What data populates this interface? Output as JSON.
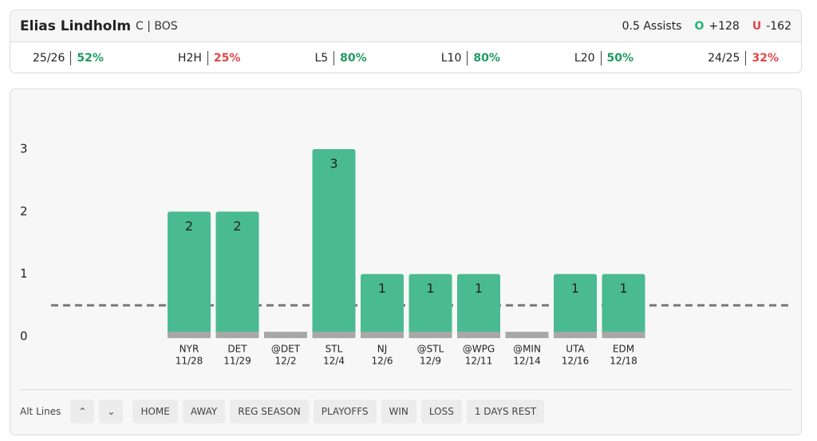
{
  "header": {
    "player": "Elias Lindholm",
    "position": "C | BOS",
    "market": "0.5 Assists",
    "over_label": "O",
    "over_odds": "+128",
    "under_label": "U",
    "under_odds": "-162"
  },
  "stats": [
    {
      "label": "25/26",
      "value": "52%",
      "color": "#1f9a63"
    },
    {
      "label": "H2H",
      "value": "25%",
      "color": "#e0464a"
    },
    {
      "label": "L5",
      "value": "80%",
      "color": "#1f9a63"
    },
    {
      "label": "L10",
      "value": "80%",
      "color": "#1f9a63"
    },
    {
      "label": "L20",
      "value": "50%",
      "color": "#1f9a63"
    },
    {
      "label": "24/25",
      "value": "32%",
      "color": "#e0464a"
    }
  ],
  "chart_data": {
    "type": "bar",
    "categories": [
      "NYR",
      "DET",
      "@DET",
      "STL",
      "NJ",
      "@STL",
      "@WPG",
      "@MIN",
      "UTA",
      "EDM"
    ],
    "dates": [
      "11/28",
      "11/29",
      "12/2",
      "12/4",
      "12/6",
      "12/9",
      "12/11",
      "12/14",
      "12/16",
      "12/18"
    ],
    "values": [
      2,
      2,
      0,
      3,
      1,
      1,
      1,
      0,
      1,
      1
    ],
    "value_labels": [
      "2",
      "2",
      null,
      "3",
      "1",
      "1",
      "1",
      null,
      "1",
      "1"
    ],
    "color": "#4aba93",
    "ylim": [
      0,
      3
    ],
    "yticks": [
      0,
      1,
      2,
      3
    ],
    "threshold": 0.5
  },
  "filters": {
    "label": "Alt Lines",
    "buttons": [
      "HOME",
      "AWAY",
      "REG SEASON",
      "PLAYOFFS",
      "WIN",
      "LOSS",
      "1 DAYS REST"
    ]
  }
}
